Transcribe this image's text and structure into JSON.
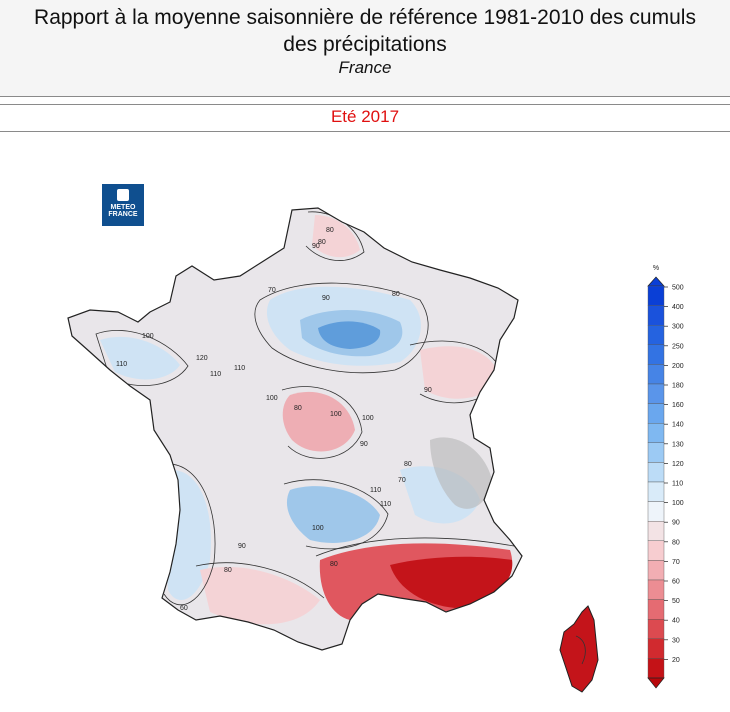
{
  "header": {
    "title_line1": "Rapport à la moyenne saisonnière de référence 1981-2010 des cumuls",
    "title_line2": "des précipitations",
    "region": "France"
  },
  "season": "Eté 2017",
  "logo": {
    "line1": "METEO",
    "line2": "FRANCE"
  },
  "legend": {
    "unit": "%",
    "levels": [
      {
        "label": "500",
        "color": "#0a3fd6"
      },
      {
        "label": "400",
        "color": "#1a52dc"
      },
      {
        "label": "300",
        "color": "#2563e0"
      },
      {
        "label": "250",
        "color": "#3373e3"
      },
      {
        "label": "200",
        "color": "#4684e6"
      },
      {
        "label": "180",
        "color": "#5a95ea"
      },
      {
        "label": "160",
        "color": "#6aa7ee"
      },
      {
        "label": "140",
        "color": "#7fb8f1"
      },
      {
        "label": "130",
        "color": "#9ccaf4"
      },
      {
        "label": "120",
        "color": "#bcdcf7"
      },
      {
        "label": "110",
        "color": "#d9ebf9"
      },
      {
        "label": "100",
        "color": "#eef4fa"
      },
      {
        "label": "90",
        "color": "#f3e3e5"
      },
      {
        "label": "80",
        "color": "#f7cdd0"
      },
      {
        "label": "70",
        "color": "#f2aeb3"
      },
      {
        "label": "60",
        "color": "#ec8d93"
      },
      {
        "label": "50",
        "color": "#e56b72"
      },
      {
        "label": "40",
        "color": "#dc4a50"
      },
      {
        "label": "30",
        "color": "#d12a2f"
      },
      {
        "label": "20",
        "color": "#c41217"
      }
    ],
    "top_color": "#0a3fd6",
    "bottom_color": "#b8070b"
  },
  "map_labels": [
    "80",
    "80",
    "90",
    "70",
    "90",
    "80",
    "100",
    "100",
    "110",
    "120",
    "110",
    "110",
    "100",
    "80",
    "90",
    "100",
    "90",
    "110",
    "80",
    "70",
    "90",
    "80",
    "100",
    "110",
    "80",
    "60"
  ],
  "palette": {
    "ocean_bg": "#ffffff",
    "neutral": "#e9e6ea",
    "blue_light": "#cfe3f4",
    "blue_mid": "#9fc7ea",
    "blue_dark": "#5f9ddb",
    "pink_light": "#f4d3d6",
    "pink_mid": "#eeaeb4",
    "red_mid": "#e0575f",
    "red_dark": "#c4141a",
    "relief": "#b6b6b6",
    "contour": "#333333"
  }
}
